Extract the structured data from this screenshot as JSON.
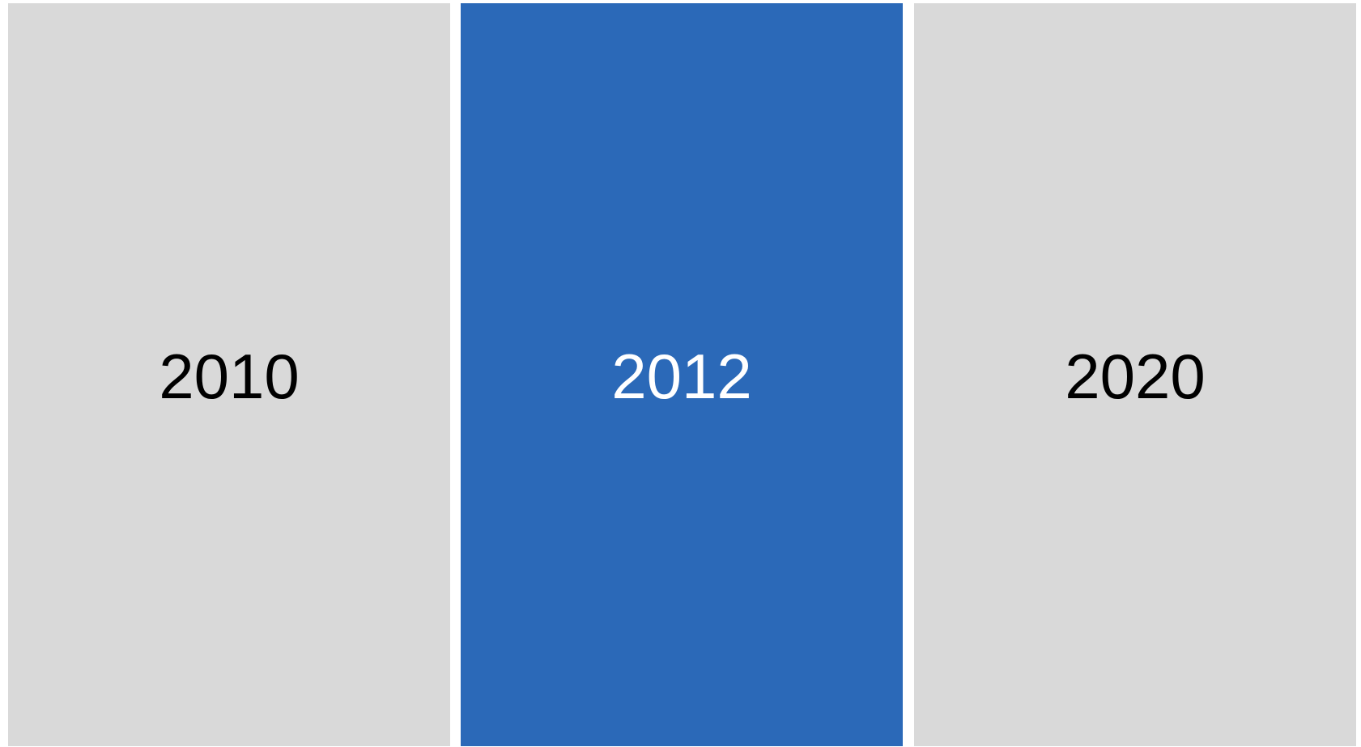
{
  "tabs": [
    "2010",
    "2012",
    "2020"
  ]
}
